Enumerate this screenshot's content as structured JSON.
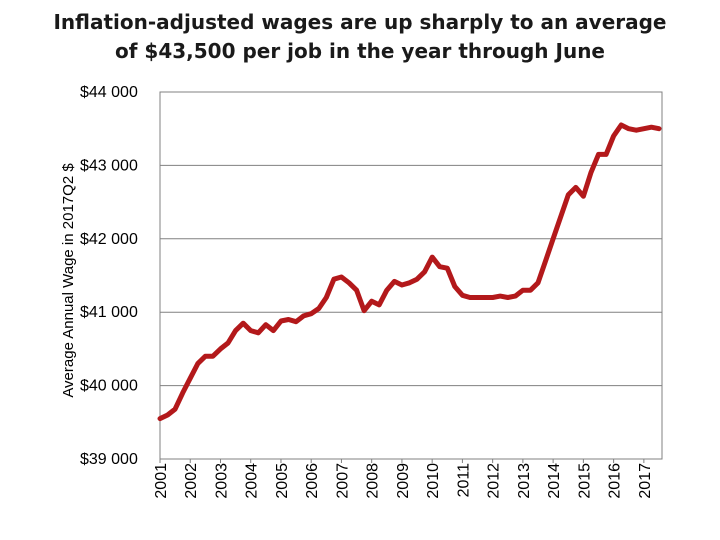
{
  "chart_data": {
    "type": "line",
    "title": [
      "Inflation-adjusted wages are up sharply to an average",
      "of $43,500 per job in the year through June"
    ],
    "xlabel": "",
    "ylabel": "Average Annual Wage in 2017Q2 $",
    "ylim": [
      39000,
      44000
    ],
    "xlim": [
      2001,
      2017.6
    ],
    "y_ticks": [
      39000,
      40000,
      41000,
      42000,
      43000,
      44000
    ],
    "y_tick_labels": [
      "$39 000",
      "$40 000",
      "$41 000",
      "$42 000",
      "$43 000",
      "$44 000"
    ],
    "x_tick_labels": [
      "2001",
      "2002",
      "2003",
      "2004",
      "2005",
      "2006",
      "2007",
      "2008",
      "2009",
      "2010",
      "2011",
      "2012",
      "2013",
      "2014",
      "2015",
      "2016",
      "2017"
    ],
    "grid": "horizontal",
    "series": [
      {
        "name": "",
        "color": "#b3191b",
        "x": [
          2001.0,
          2001.25,
          2001.5,
          2001.75,
          2002.0,
          2002.25,
          2002.5,
          2002.75,
          2003.0,
          2003.25,
          2003.5,
          2003.75,
          2004.0,
          2004.25,
          2004.5,
          2004.75,
          2005.0,
          2005.25,
          2005.5,
          2005.75,
          2006.0,
          2006.25,
          2006.5,
          2006.75,
          2007.0,
          2007.25,
          2007.5,
          2007.75,
          2008.0,
          2008.25,
          2008.5,
          2008.75,
          2009.0,
          2009.25,
          2009.5,
          2009.75,
          2010.0,
          2010.25,
          2010.5,
          2010.75,
          2011.0,
          2011.25,
          2011.5,
          2011.75,
          2012.0,
          2012.25,
          2012.5,
          2012.75,
          2013.0,
          2013.25,
          2013.5,
          2013.75,
          2014.0,
          2014.25,
          2014.5,
          2014.75,
          2015.0,
          2015.25,
          2015.5,
          2015.75,
          2016.0,
          2016.25,
          2016.5,
          2016.75,
          2017.0,
          2017.25,
          2017.5
        ],
        "values": [
          39550,
          39600,
          39680,
          39900,
          40100,
          40300,
          40400,
          40400,
          40500,
          40580,
          40750,
          40850,
          40750,
          40720,
          40830,
          40750,
          40880,
          40900,
          40870,
          40950,
          40980,
          41050,
          41200,
          41450,
          41480,
          41400,
          41300,
          41020,
          41150,
          41100,
          41300,
          41420,
          41370,
          41400,
          41450,
          41550,
          41750,
          41620,
          41600,
          41350,
          41230,
          41200,
          41200,
          41200,
          41200,
          41220,
          41200,
          41220,
          41300,
          41300,
          41400,
          41700,
          42000,
          42300,
          42600,
          42700,
          42580,
          42900,
          43150,
          43150,
          43400,
          43550,
          43500,
          43480,
          43500,
          43520,
          43500
        ]
      }
    ]
  }
}
